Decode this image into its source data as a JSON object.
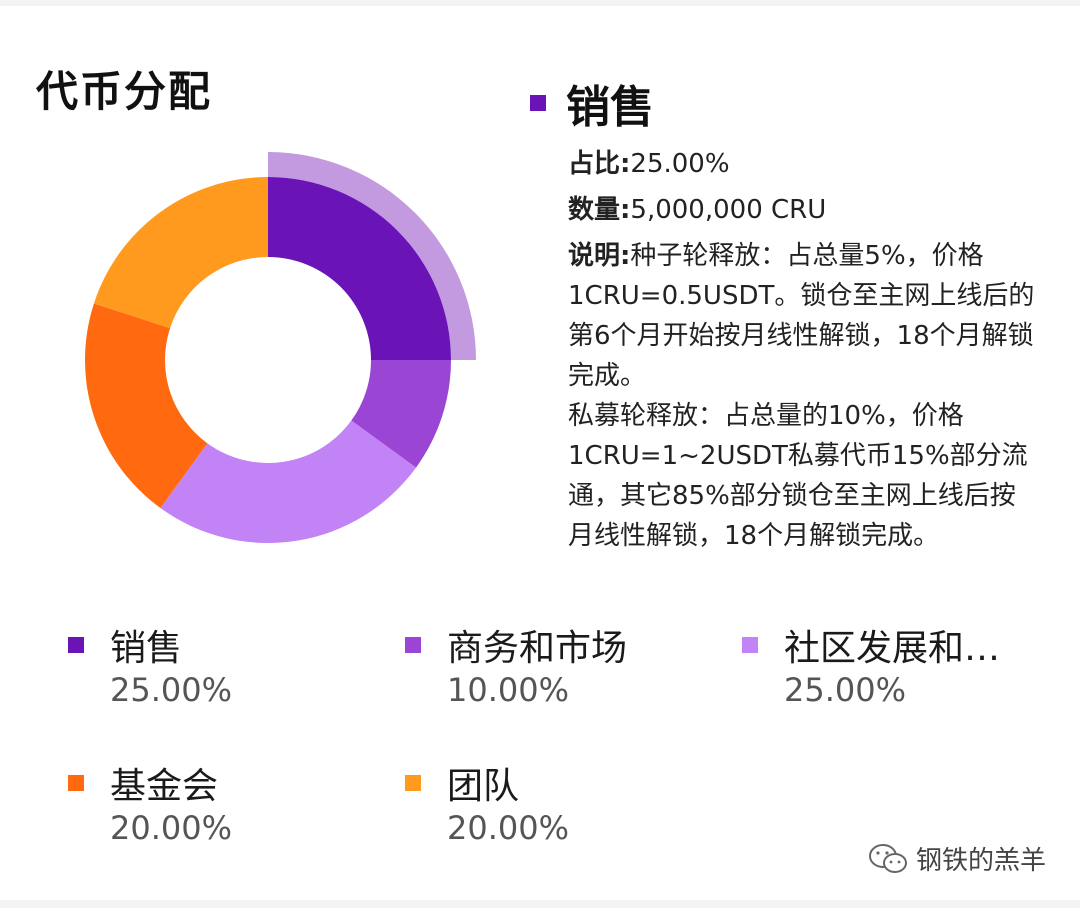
{
  "chart_data": {
    "type": "pie",
    "title": "代币分配",
    "donut": true,
    "highlighted_index": 0,
    "categories": [
      "销售",
      "商务和市场",
      "社区发展和…",
      "基金会",
      "团队"
    ],
    "values": [
      25.0,
      10.0,
      25.0,
      20.0,
      20.0
    ],
    "value_labels": [
      "25.00%",
      "10.00%",
      "25.00%",
      "20.00%",
      "20.00%"
    ],
    "colors": [
      "#6a14b8",
      "#9b45d4",
      "#c183f5",
      "#ff6a10",
      "#ff9a1e"
    ],
    "highlight_color": "#c39ae0",
    "legend_position": "bottom"
  },
  "detail": {
    "name": "销售",
    "ratio_key": "占比:",
    "ratio_value": "25.00%",
    "amount_key": "数量:",
    "amount_value": "5,000,000 CRU",
    "desc_key": "说明:",
    "desc_value": "种子轮释放：占总量5%，价格1CRU=0.5USDT。锁仓至主网上线后的第6个月开始按月线性解锁，18个月解锁完成。",
    "desc_value_2": "私募轮释放：占总量的10%，价格1CRU=1~2USDT私募代币15%部分流通，其它85%部分锁仓至主网上线后按月线性解锁，18个月解锁完成。"
  },
  "watermark": {
    "text": "钢铁的羔羊",
    "icon": "wechat-icon"
  }
}
